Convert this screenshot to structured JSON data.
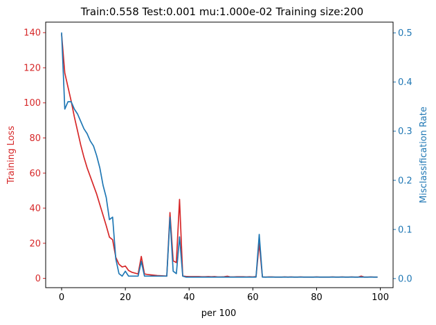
{
  "chart_data": {
    "type": "line",
    "title": "Train:0.558 Test:0.001 mu:1.000e-02 Training size:200",
    "xlabel": "per 100",
    "ylabel_left": "Training Loss",
    "ylabel_right": "Misclassification Rate",
    "xlim": [
      -5,
      104
    ],
    "ylim_left": [
      -5.3,
      146
    ],
    "ylim_right": [
      -0.0185,
      0.522
    ],
    "xticks": [
      0,
      20,
      40,
      60,
      80,
      100
    ],
    "yticks_left": [
      0,
      20,
      40,
      60,
      80,
      100,
      120,
      140
    ],
    "yticks_right": [
      0.0,
      0.1,
      0.2,
      0.3,
      0.4,
      0.5
    ],
    "grid": false,
    "x": [
      0,
      1,
      2,
      3,
      4,
      5,
      6,
      7,
      8,
      9,
      10,
      11,
      12,
      13,
      14,
      15,
      16,
      17,
      18,
      19,
      20,
      21,
      22,
      23,
      24,
      25,
      26,
      27,
      28,
      29,
      30,
      31,
      32,
      33,
      34,
      35,
      36,
      37,
      38,
      39,
      40,
      41,
      42,
      43,
      44,
      45,
      46,
      47,
      48,
      49,
      50,
      51,
      52,
      53,
      54,
      55,
      56,
      57,
      58,
      59,
      60,
      61,
      62,
      63,
      64,
      65,
      66,
      67,
      68,
      69,
      70,
      71,
      72,
      73,
      74,
      75,
      76,
      77,
      78,
      79,
      80,
      81,
      82,
      83,
      84,
      85,
      86,
      87,
      88,
      89,
      90,
      91,
      92,
      93,
      94,
      95,
      96,
      97,
      98,
      99
    ],
    "series": [
      {
        "axis": "left",
        "color": "#d62728",
        "values": [
          139,
          117,
          109,
          101,
          92,
          84,
          76,
          69,
          63,
          58,
          53,
          48,
          42,
          36,
          30,
          23.5,
          22,
          12,
          8,
          6.5,
          7,
          4.5,
          3.5,
          3,
          2.5,
          12.5,
          2.5,
          2.2,
          2,
          1.8,
          1.6,
          1.5,
          1.4,
          1.3,
          37.5,
          10,
          9,
          45,
          1.3,
          1.1,
          1,
          1,
          1,
          1,
          0.9,
          0.9,
          1,
          0.9,
          1,
          0.8,
          0.8,
          0.9,
          1.2,
          0.8,
          0.8,
          0.9,
          0.9,
          0.9,
          0.8,
          0.9,
          0.8,
          1,
          20,
          0.8,
          0.7,
          0.8,
          0.8,
          0.7,
          0.7,
          0.7,
          0.8,
          0.7,
          0.8,
          0.7,
          0.7,
          0.8,
          0.7,
          0.7,
          0.7,
          0.7,
          0.8,
          0.7,
          0.7,
          0.7,
          0.7,
          0.8,
          0.7,
          0.7,
          0.8,
          0.7,
          0.7,
          0.8,
          0.7,
          0.7,
          1.3,
          0.7,
          0.7,
          0.8,
          0.7,
          0.7
        ]
      },
      {
        "axis": "right",
        "color": "#1f77b4",
        "values": [
          0.5,
          0.345,
          0.36,
          0.36,
          0.345,
          0.335,
          0.32,
          0.305,
          0.295,
          0.28,
          0.27,
          0.25,
          0.225,
          0.19,
          0.165,
          0.12,
          0.125,
          0.04,
          0.01,
          0.005,
          0.015,
          0.005,
          0.005,
          0.005,
          0.005,
          0.035,
          0.005,
          0.005,
          0.005,
          0.005,
          0.005,
          0.005,
          0.005,
          0.005,
          0.125,
          0.015,
          0.01,
          0.085,
          0.005,
          0.003,
          0.003,
          0.003,
          0.003,
          0.003,
          0.003,
          0.003,
          0.003,
          0.003,
          0.003,
          0.003,
          0.003,
          0.003,
          0.003,
          0.003,
          0.003,
          0.003,
          0.003,
          0.003,
          0.003,
          0.003,
          0.003,
          0.003,
          0.09,
          0.003,
          0.003,
          0.003,
          0.003,
          0.003,
          0.003,
          0.003,
          0.003,
          0.003,
          0.003,
          0.003,
          0.003,
          0.003,
          0.003,
          0.003,
          0.003,
          0.003,
          0.003,
          0.003,
          0.003,
          0.003,
          0.003,
          0.003,
          0.003,
          0.003,
          0.003,
          0.003,
          0.003,
          0.003,
          0.003,
          0.003,
          0.003,
          0.003,
          0.003,
          0.003,
          0.003,
          0.003
        ]
      }
    ]
  }
}
